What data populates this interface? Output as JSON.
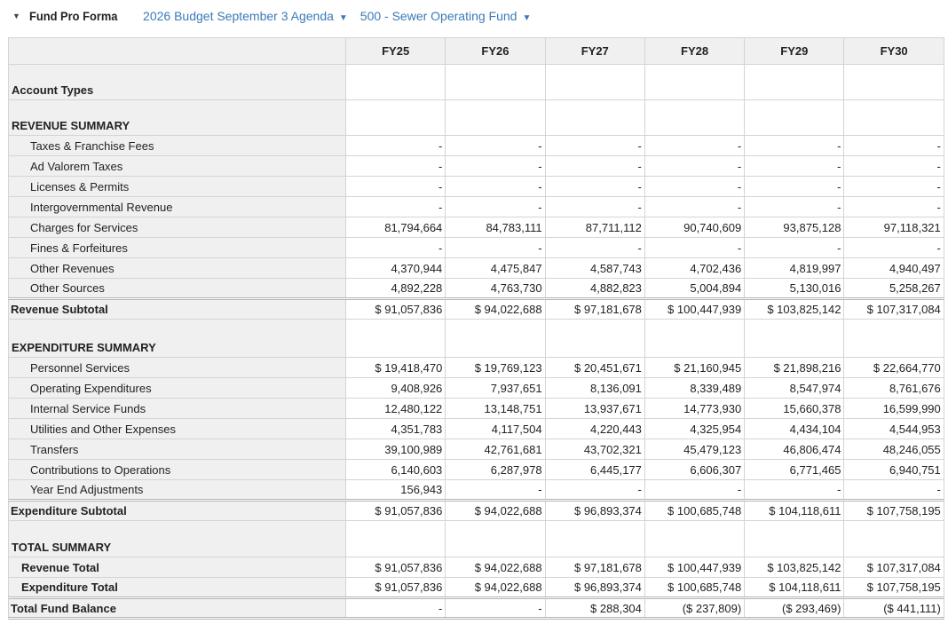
{
  "header": {
    "title": "Fund Pro Forma",
    "budget_dropdown": "2026 Budget September 3 Agenda",
    "fund_dropdown": "500 - Sewer Operating Fund"
  },
  "table": {
    "columns": [
      "FY25",
      "FY26",
      "FY27",
      "FY28",
      "FY29",
      "FY30"
    ],
    "rows": [
      {
        "label": "Account Types",
        "type": "sec",
        "values": [
          "",
          "",
          "",
          "",
          "",
          ""
        ]
      },
      {
        "label": "REVENUE SUMMARY",
        "type": "sec rev",
        "values": [
          "",
          "",
          "",
          "",
          "",
          ""
        ]
      },
      {
        "label": "Taxes & Franchise Fees",
        "type": "data",
        "values": [
          "-",
          "-",
          "-",
          "-",
          "-",
          "-"
        ]
      },
      {
        "label": "Ad Valorem Taxes",
        "type": "data",
        "values": [
          "-",
          "-",
          "-",
          "-",
          "-",
          "-"
        ]
      },
      {
        "label": "Licenses & Permits",
        "type": "data",
        "values": [
          "-",
          "-",
          "-",
          "-",
          "-",
          "-"
        ]
      },
      {
        "label": "Intergovernmental Revenue",
        "type": "data",
        "values": [
          "-",
          "-",
          "-",
          "-",
          "-",
          "-"
        ]
      },
      {
        "label": "Charges for Services",
        "type": "data",
        "values": [
          "81,794,664",
          "84,783,111",
          "87,711,112",
          "90,740,609",
          "93,875,128",
          "97,118,321"
        ]
      },
      {
        "label": "Fines & Forfeitures",
        "type": "data",
        "values": [
          "-",
          "-",
          "-",
          "-",
          "-",
          "-"
        ]
      },
      {
        "label": "Other Revenues",
        "type": "data",
        "values": [
          "4,370,944",
          "4,475,847",
          "4,587,743",
          "4,702,436",
          "4,819,997",
          "4,940,497"
        ]
      },
      {
        "label": "Other Sources",
        "type": "data",
        "values": [
          "4,892,228",
          "4,763,730",
          "4,882,823",
          "5,004,894",
          "5,130,016",
          "5,258,267"
        ]
      },
      {
        "label": "Revenue Subtotal",
        "type": "sub",
        "values": [
          "$ 91,057,836",
          "$ 94,022,688",
          "$ 97,181,678",
          "$ 100,447,939",
          "$ 103,825,142",
          "$ 107,317,084"
        ]
      },
      {
        "label": "EXPENDITURE SUMMARY",
        "type": "sec exp",
        "values": [
          "",
          "",
          "",
          "",
          "",
          ""
        ]
      },
      {
        "label": "Personnel Services",
        "type": "data",
        "values": [
          "$ 19,418,470",
          "$ 19,769,123",
          "$ 20,451,671",
          "$ 21,160,945",
          "$ 21,898,216",
          "$ 22,664,770"
        ]
      },
      {
        "label": "Operating Expenditures",
        "type": "data",
        "values": [
          "9,408,926",
          "7,937,651",
          "8,136,091",
          "8,339,489",
          "8,547,974",
          "8,761,676"
        ]
      },
      {
        "label": "Internal Service Funds",
        "type": "data",
        "values": [
          "12,480,122",
          "13,148,751",
          "13,937,671",
          "14,773,930",
          "15,660,378",
          "16,599,990"
        ]
      },
      {
        "label": "Utilities and Other Expenses",
        "type": "data",
        "values": [
          "4,351,783",
          "4,117,504",
          "4,220,443",
          "4,325,954",
          "4,434,104",
          "4,544,953"
        ]
      },
      {
        "label": "Transfers",
        "type": "data",
        "values": [
          "39,100,989",
          "42,761,681",
          "43,702,321",
          "45,479,123",
          "46,806,474",
          "48,246,055"
        ]
      },
      {
        "label": "Contributions to Operations",
        "type": "data",
        "values": [
          "6,140,603",
          "6,287,978",
          "6,445,177",
          "6,606,307",
          "6,771,465",
          "6,940,751"
        ]
      },
      {
        "label": "Year End Adjustments",
        "type": "data",
        "values": [
          "156,943",
          "-",
          "-",
          "-",
          "-",
          "-"
        ]
      },
      {
        "label": "Expenditure Subtotal",
        "type": "sub",
        "values": [
          "$ 91,057,836",
          "$ 94,022,688",
          "$ 96,893,374",
          "$ 100,685,748",
          "$ 104,118,611",
          "$ 107,758,195"
        ]
      },
      {
        "label": "TOTAL SUMMARY",
        "type": "sec tot",
        "values": [
          "",
          "",
          "",
          "",
          "",
          ""
        ]
      },
      {
        "label": "Revenue Total",
        "type": "tot2 first",
        "values": [
          "$ 91,057,836",
          "$ 94,022,688",
          "$ 97,181,678",
          "$ 100,447,939",
          "$ 103,825,142",
          "$ 107,317,084"
        ]
      },
      {
        "label": "Expenditure Total",
        "type": "tot2",
        "values": [
          "$ 91,057,836",
          "$ 94,022,688",
          "$ 96,893,374",
          "$ 100,685,748",
          "$ 104,118,611",
          "$ 107,758,195"
        ]
      },
      {
        "label": "Total Fund Balance",
        "type": "sub last",
        "values": [
          "-",
          "-",
          "$ 288,304",
          "($ 237,809)",
          "($ 293,469)",
          "($ 441,111)"
        ]
      }
    ]
  }
}
